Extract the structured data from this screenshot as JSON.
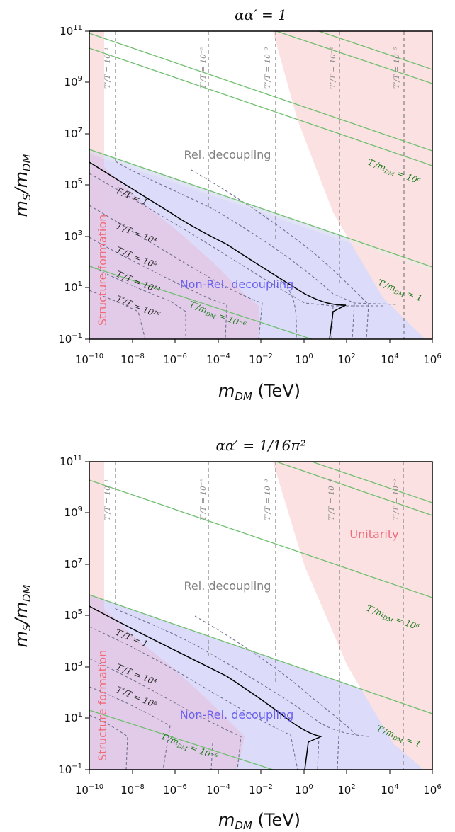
{
  "chart_data": [
    {
      "type": "area",
      "title": "αα′ = 1",
      "xlabel": "m_DM (TeV)",
      "ylabel": "m_S/m_DM",
      "xscale": "log",
      "yscale": "log",
      "xlim": [
        1e-10,
        1000000.0
      ],
      "ylim": [
        0.1,
        100000000000.0
      ],
      "x_ticks": [
        "10^-10",
        "10^-8",
        "10^-6",
        "10^-4",
        "10^-2",
        "10^0",
        "10^2",
        "10^4",
        "10^6"
      ],
      "y_ticks": [
        "10^-1",
        "10^1",
        "10^3",
        "10^5",
        "10^7",
        "10^9",
        "10^11"
      ],
      "regions": [
        {
          "name": "Structure formation",
          "color": "#f07080"
        },
        {
          "name": "Rel. decoupling",
          "color": "#888888"
        },
        {
          "name": "Non-Rel. decoupling",
          "color": "#7a6cf0"
        },
        {
          "name": "",
          "color": "#f07080"
        }
      ],
      "temperature_ratio_lines": [
        {
          "label": "T′/T = 10⁻¹",
          "x": 3e-09
        },
        {
          "label": "T′/T = 10⁻²",
          "x": 3e-05
        },
        {
          "label": "T′/T = 10⁻³",
          "x": 0.03
        },
        {
          "label": "T′/T = 10⁻⁴",
          "x": 50
        },
        {
          "label": "T′/T = 10⁻⁵",
          "x": 50000
        }
      ],
      "contour_labels": [
        "T′/T = 1",
        "T′/T = 10⁴",
        "T′/T = 10⁸",
        "T′/T = 10¹²",
        "T′/T = 10¹⁶"
      ],
      "green_lines": [
        "T′/m_DM = 10⁶",
        "T′/m_DM = 1",
        "T′/m_DM = 10⁻⁶"
      ],
      "unity_contour": {
        "x": [
          1e-10,
          1e-08,
          1e-06,
          0.0001,
          0.01,
          1,
          20,
          60
        ],
        "y": [
          700000,
          30000,
          3000,
          500,
          50,
          8,
          3,
          2
        ]
      }
    },
    {
      "type": "area",
      "title": "αα′ = 1/16π²",
      "xlabel": "m_DM (TeV)",
      "ylabel": "m_S/m_DM",
      "xscale": "log",
      "yscale": "log",
      "xlim": [
        1e-10,
        1000000.0
      ],
      "ylim": [
        0.1,
        100000000000.0
      ],
      "x_ticks": [
        "10^-10",
        "10^-8",
        "10^-6",
        "10^-4",
        "10^-2",
        "10^0",
        "10^2",
        "10^4",
        "10^6"
      ],
      "y_ticks": [
        "10^-1",
        "10^1",
        "10^3",
        "10^5",
        "10^7",
        "10^9",
        "10^11"
      ],
      "regions": [
        {
          "name": "Structure formation",
          "color": "#f07080"
        },
        {
          "name": "Rel. decoupling",
          "color": "#888888"
        },
        {
          "name": "Non-Rel. decoupling",
          "color": "#7a6cf0"
        },
        {
          "name": "Unitarity",
          "color": "#f07080"
        }
      ],
      "temperature_ratio_lines": [
        {
          "label": "T′/T = 10⁻¹",
          "x": 3e-09
        },
        {
          "label": "T′/T = 10⁻²",
          "x": 3e-05
        },
        {
          "label": "T′/T = 10⁻³",
          "x": 0.03
        },
        {
          "label": "T′/T = 10⁻⁴",
          "x": 50
        },
        {
          "label": "T′/T = 10⁻⁵",
          "x": 50000
        }
      ],
      "contour_labels": [
        "T′/T = 1",
        "T′/T = 10⁴",
        "T′/T = 10⁸"
      ],
      "green_lines": [
        "T′/m_DM = 10⁶",
        "T′/m_DM = 1",
        "T′/m_DM = 10⁻⁶"
      ],
      "unity_contour": {
        "x": [
          1e-10,
          1e-08,
          1e-06,
          0.0001,
          0.01,
          1,
          3,
          8
        ],
        "y": [
          250000,
          12000,
          800,
          150,
          20,
          4,
          2,
          2
        ]
      }
    }
  ]
}
